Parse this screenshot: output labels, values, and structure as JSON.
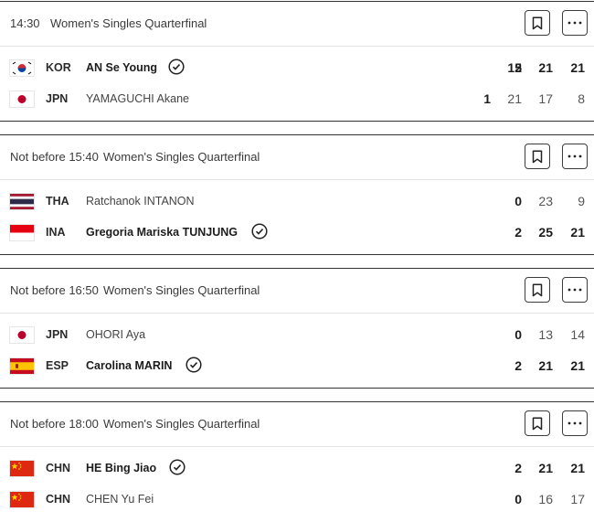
{
  "matches": [
    {
      "time": "14:30",
      "round": "Women's Singles Quarterfinal",
      "players": [
        {
          "noc": "KOR",
          "name": "AN Se Young",
          "winner": true,
          "sets": "2",
          "games": [
            "15",
            "21",
            "21"
          ]
        },
        {
          "noc": "JPN",
          "name": "YAMAGUCHI Akane",
          "winner": false,
          "sets": "1",
          "games": [
            "21",
            "17",
            "8"
          ]
        }
      ]
    },
    {
      "time": "Not before 15:40",
      "round": "Women's Singles Quarterfinal",
      "players": [
        {
          "noc": "THA",
          "name": "Ratchanok INTANON",
          "winner": false,
          "sets": "0",
          "games": [
            "23",
            "9"
          ]
        },
        {
          "noc": "INA",
          "name": "Gregoria Mariska TUNJUNG",
          "winner": true,
          "sets": "2",
          "games": [
            "25",
            "21"
          ]
        }
      ]
    },
    {
      "time": "Not before 16:50",
      "round": "Women's Singles Quarterfinal",
      "players": [
        {
          "noc": "JPN",
          "name": "OHORI Aya",
          "winner": false,
          "sets": "0",
          "games": [
            "13",
            "14"
          ]
        },
        {
          "noc": "ESP",
          "name": "Carolina MARIN",
          "winner": true,
          "sets": "2",
          "games": [
            "21",
            "21"
          ]
        }
      ]
    },
    {
      "time": "Not before 18:00",
      "round": "Women's Singles Quarterfinal",
      "players": [
        {
          "noc": "CHN",
          "name": "HE Bing Jiao",
          "winner": true,
          "sets": "2",
          "games": [
            "21",
            "21"
          ]
        },
        {
          "noc": "CHN",
          "name": "CHEN Yu Fei",
          "winner": false,
          "sets": "0",
          "games": [
            "16",
            "17"
          ]
        }
      ]
    }
  ],
  "icons": {
    "bookmark": "bookmark-icon",
    "more": "more-options-icon",
    "winner": "check-circle-icon"
  },
  "colors": {
    "border": "#333333",
    "text_strong": "#1c1c1c",
    "text_muted": "#555555"
  }
}
